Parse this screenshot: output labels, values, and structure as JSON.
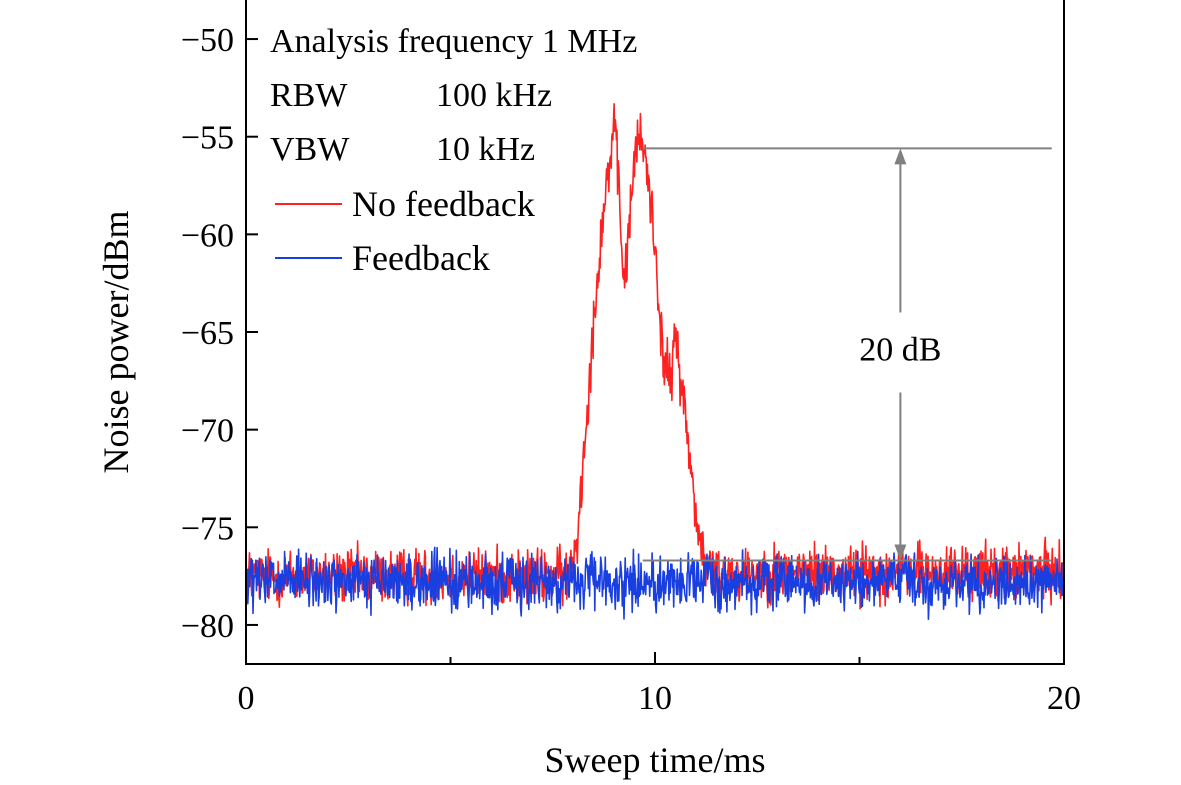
{
  "chart_data": {
    "type": "line",
    "xlabel": "Sweep time/ms",
    "ylabel": "Noise power/dBm",
    "xlim": [
      0,
      20
    ],
    "ylim": [
      -82,
      -48
    ],
    "x_ticks": [
      0,
      10,
      20
    ],
    "x_tick_labels": [
      "0",
      "10",
      "20"
    ],
    "x_minor_ticks": [
      5,
      15
    ],
    "y_ticks": [
      -50,
      -55,
      -60,
      -65,
      -70,
      -75,
      -80
    ],
    "y_tick_labels": [
      "−50",
      "−55",
      "−60",
      "−65",
      "−70",
      "−75",
      "−80"
    ],
    "grid": false,
    "legend_position": "upper-left",
    "series": [
      {
        "name": "No feedback",
        "color": "#ff2020",
        "baseline": -77.5,
        "noise_amplitude": 1.0,
        "x": [
          0,
          7.9,
          8.1,
          8.3,
          8.5,
          8.7,
          8.9,
          9.0,
          9.1,
          9.2,
          9.3,
          9.4,
          9.5,
          9.65,
          9.8,
          10.0,
          10.2,
          10.4,
          10.5,
          10.7,
          10.9,
          11.1,
          11.3,
          20
        ],
        "y": [
          -77.5,
          -77.5,
          -75.5,
          -70.0,
          -64.5,
          -59.5,
          -56.0,
          -54.6,
          -57.0,
          -61.5,
          -62.0,
          -58.5,
          -56.0,
          -55.0,
          -56.5,
          -60.5,
          -66.5,
          -67.5,
          -65.0,
          -68.5,
          -72.5,
          -75.8,
          -77.3,
          -77.3
        ]
      },
      {
        "name": "Feedback",
        "color": "#1a3fe0",
        "baseline": -77.8,
        "noise_amplitude": 1.0,
        "x": [
          0,
          20
        ],
        "y": [
          -77.8,
          -77.8
        ]
      }
    ],
    "annotations": {
      "info_lines": [
        {
          "label": "Analysis frequency 1 MHz",
          "value": ""
        },
        {
          "label": "RBW",
          "value": "100 kHz"
        },
        {
          "label": "VBW",
          "value": "10 kHz"
        }
      ],
      "difference_label": "20 dB",
      "difference_color": "#808080",
      "peak_level": -55.6,
      "floor_level": -76.7,
      "peak_line_x": [
        9.7,
        19.7
      ],
      "floor_line_x": [
        9.7,
        19.7
      ],
      "arrow_x": 16.0
    }
  }
}
